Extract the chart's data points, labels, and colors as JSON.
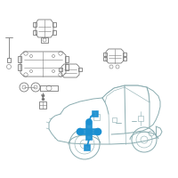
{
  "bg": "#ffffff",
  "car_color": "#8aacb0",
  "car_lw": 0.7,
  "parts_color": "#7a7a7a",
  "parts_lw": 0.6,
  "highlight_color": "#1a8fd1",
  "highlight_lw": 1.2,
  "thin_lw": 0.4
}
